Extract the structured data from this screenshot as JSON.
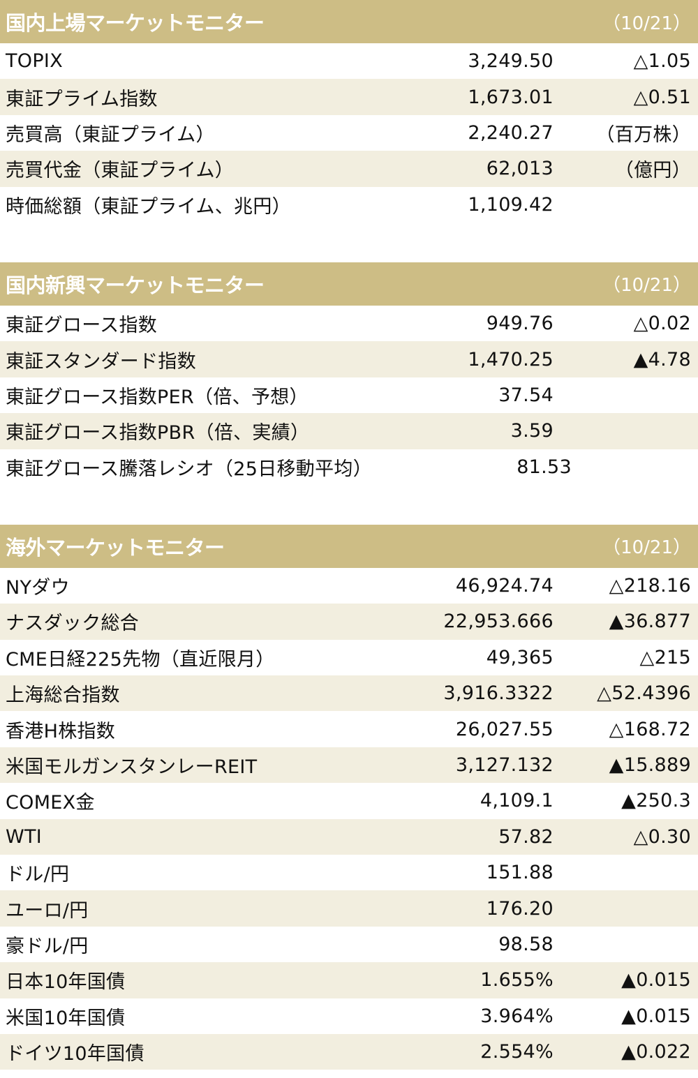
{
  "colors": {
    "header_bg": "#cdbd85",
    "header_text": "#ffffff",
    "stripe": "#f2eedf"
  },
  "sections": [
    {
      "title": "国内上場マーケットモニター",
      "date": "（10/21）",
      "rows": [
        {
          "name": "TOPIX",
          "value": "3,249.50",
          "change": "△1.05"
        },
        {
          "name": "東証プライム指数",
          "value": "1,673.01",
          "change": "△0.51"
        },
        {
          "name": "売買高（東証プライム）",
          "value": "2,240.27",
          "change": "（百万株）"
        },
        {
          "name": "売買代金（東証プライム）",
          "value": "62,013",
          "change": "（億円）"
        },
        {
          "name": "時価総額（東証プライム、兆円）",
          "value": "1,109.42",
          "change": ""
        }
      ]
    },
    {
      "title": "国内新興マーケットモニター",
      "date": "（10/21）",
      "rows": [
        {
          "name": "東証グロース指数",
          "value": "949.76",
          "change": "△0.02"
        },
        {
          "name": "東証スタンダード指数",
          "value": "1,470.25",
          "change": "▲4.78"
        },
        {
          "name": "東証グロース指数PER（倍、予想）",
          "value": "37.54",
          "change": ""
        },
        {
          "name": "東証グロース指数PBR（倍、実績）",
          "value": "3.59",
          "change": ""
        },
        {
          "name": "東証グロース騰落レシオ（25日移動平均）",
          "value": "81.53",
          "change": ""
        }
      ]
    },
    {
      "title": "海外マーケットモニター",
      "date": "（10/21）",
      "rows": [
        {
          "name": "NYダウ",
          "value": "46,924.74",
          "change": "△218.16"
        },
        {
          "name": "ナスダック総合",
          "value": "22,953.666",
          "change": "▲36.877"
        },
        {
          "name": "CME日経225先物（直近限月）",
          "value": "49,365",
          "change": "△215"
        },
        {
          "name": "上海総合指数",
          "value": "3,916.3322",
          "change": "△52.4396"
        },
        {
          "name": "香港H株指数",
          "value": "26,027.55",
          "change": "△168.72"
        },
        {
          "name": "米国モルガンスタンレーREIT",
          "value": "3,127.132",
          "change": "▲15.889"
        },
        {
          "name": "COMEX金",
          "value": "4,109.1",
          "change": "▲250.3"
        },
        {
          "name": "WTI",
          "value": "57.82",
          "change": "△0.30"
        },
        {
          "name": "ドル/円",
          "value": "151.88",
          "change": ""
        },
        {
          "name": "ユーロ/円",
          "value": "176.20",
          "change": ""
        },
        {
          "name": "豪ドル/円",
          "value": "98.58",
          "change": ""
        },
        {
          "name": "日本10年国債",
          "value": "1.655%",
          "change": "▲0.015"
        },
        {
          "name": "米国10年国債",
          "value": "3.964%",
          "change": "▲0.015"
        },
        {
          "name": "ドイツ10年国債",
          "value": "2.554%",
          "change": "▲0.022"
        }
      ]
    }
  ]
}
